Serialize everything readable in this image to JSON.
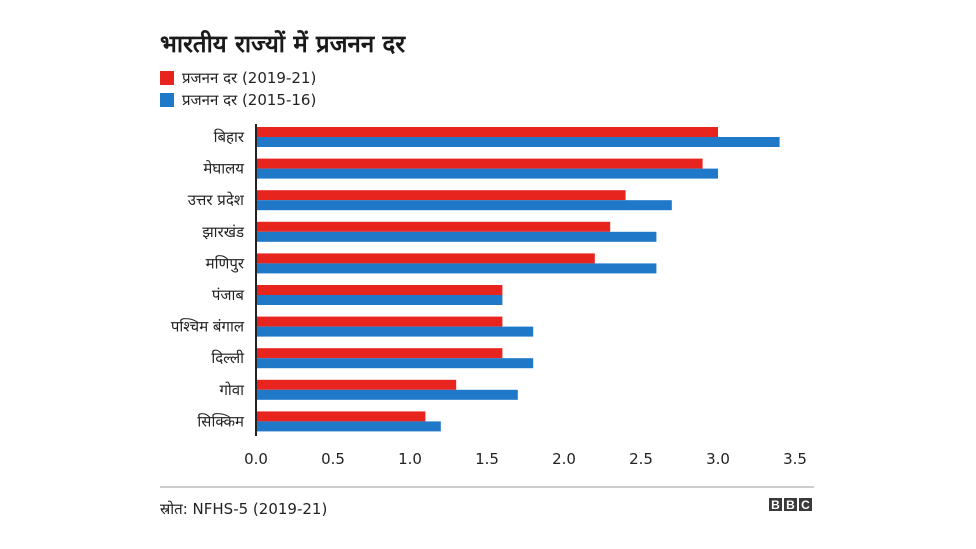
{
  "chart_data": {
    "type": "bar",
    "orientation": "horizontal",
    "title": "भारतीय राज्यों में प्रजनन दर",
    "categories": [
      "बिहार",
      "मेघालय",
      "उत्तर प्रदेश",
      "झारखंड",
      "मणिपुर",
      "पंजाब",
      "पश्चिम बंगाल",
      "दिल्ली",
      "गोवा",
      "सिक्किम"
    ],
    "series": [
      {
        "name": "प्रजनन दर (2019-21)",
        "color": "#e8241f",
        "values": [
          3.0,
          2.9,
          2.4,
          2.3,
          2.2,
          1.6,
          1.6,
          1.6,
          1.3,
          1.1
        ]
      },
      {
        "name": "प्रजनन दर (2015-16)",
        "color": "#1f78c8",
        "values": [
          3.4,
          3.0,
          2.7,
          2.6,
          2.6,
          1.6,
          1.8,
          1.8,
          1.7,
          1.2
        ]
      }
    ],
    "xticks": [
      "0.0",
      "0.5",
      "1.0",
      "1.5",
      "2.0",
      "2.5",
      "3.0",
      "3.5"
    ],
    "xlim": [
      0,
      3.5
    ],
    "grid": false,
    "legend_position": "top-left"
  },
  "source": "स्रोत: NFHS-5 (2019-21)",
  "logo_letters": [
    "B",
    "B",
    "C"
  ]
}
